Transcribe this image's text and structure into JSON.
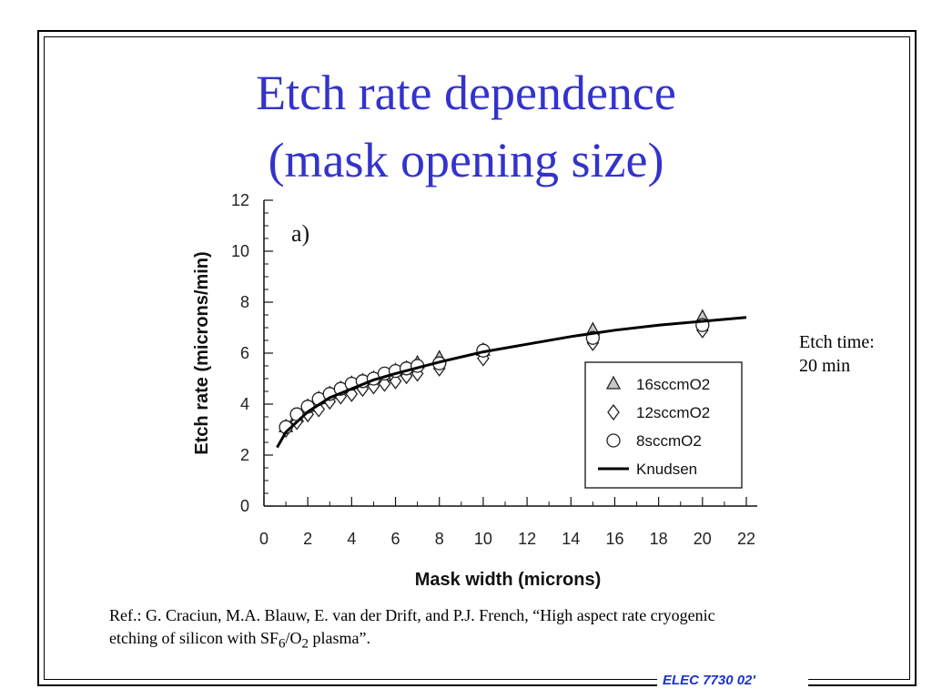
{
  "slide": {
    "title_line1": "Etch rate dependence",
    "title_line2": "(mask opening size)",
    "note_line1": "Etch time:",
    "note_line2": "20 min",
    "reference_line1": "Ref.: G. Craciun, M.A. Blauw, E. van der Drift, and P.J. French, “High aspect rate cryogenic",
    "reference_line2_prefix": "etching of silicon with SF",
    "reference_sub1": "6",
    "reference_mid": "/O",
    "reference_sub2": "2",
    "reference_suffix": " plasma”.",
    "footer": "ELEC 7730 02'"
  },
  "chart_data": {
    "type": "scatter",
    "annotation": "a)",
    "xlabel": "Mask width (microns)",
    "ylabel": "Etch rate (microns/min)",
    "xlim": [
      0,
      22
    ],
    "ylim": [
      0,
      12
    ],
    "x_ticks": [
      0,
      2,
      4,
      6,
      8,
      10,
      12,
      14,
      16,
      18,
      20,
      22
    ],
    "y_ticks": [
      0,
      2,
      4,
      6,
      8,
      10,
      12
    ],
    "grid": false,
    "legend_position": "lower-right",
    "series": [
      {
        "name": "16sccmO2",
        "marker": "triangle",
        "x": [
          1,
          1.5,
          2,
          2.5,
          3,
          3.5,
          4,
          4.5,
          5,
          5.5,
          6,
          6.5,
          7,
          8,
          10,
          15,
          20
        ],
        "y": [
          3.1,
          3.5,
          3.9,
          4.2,
          4.4,
          4.6,
          4.8,
          4.9,
          5.0,
          5.1,
          5.3,
          5.4,
          5.6,
          5.8,
          6.1,
          6.9,
          7.4
        ]
      },
      {
        "name": "12sccmO2",
        "marker": "diamond",
        "x": [
          1,
          1.5,
          2,
          2.5,
          3,
          3.5,
          4,
          4.5,
          5,
          5.5,
          6,
          6.5,
          7,
          8,
          10,
          15,
          20
        ],
        "y": [
          3.0,
          3.3,
          3.6,
          3.8,
          4.1,
          4.3,
          4.4,
          4.6,
          4.7,
          4.8,
          4.9,
          5.1,
          5.2,
          5.4,
          5.8,
          6.4,
          6.9
        ]
      },
      {
        "name": "8sccmO2",
        "marker": "circle",
        "x": [
          1,
          1.5,
          2,
          2.5,
          3,
          3.5,
          4,
          4.5,
          5,
          5.5,
          6,
          6.5,
          7,
          8,
          10,
          15,
          20
        ],
        "y": [
          3.1,
          3.6,
          3.9,
          4.2,
          4.4,
          4.6,
          4.8,
          4.9,
          5.0,
          5.2,
          5.3,
          5.4,
          5.5,
          5.6,
          6.1,
          6.6,
          7.1
        ]
      },
      {
        "name": "Knudsen",
        "marker": "line",
        "x": [
          0.6,
          1,
          2,
          3,
          4,
          5,
          6,
          8,
          10,
          12,
          14,
          16,
          18,
          20,
          22
        ],
        "y": [
          2.3,
          2.9,
          3.7,
          4.25,
          4.6,
          4.95,
          5.2,
          5.65,
          6.05,
          6.35,
          6.65,
          6.9,
          7.1,
          7.25,
          7.4
        ]
      }
    ]
  }
}
